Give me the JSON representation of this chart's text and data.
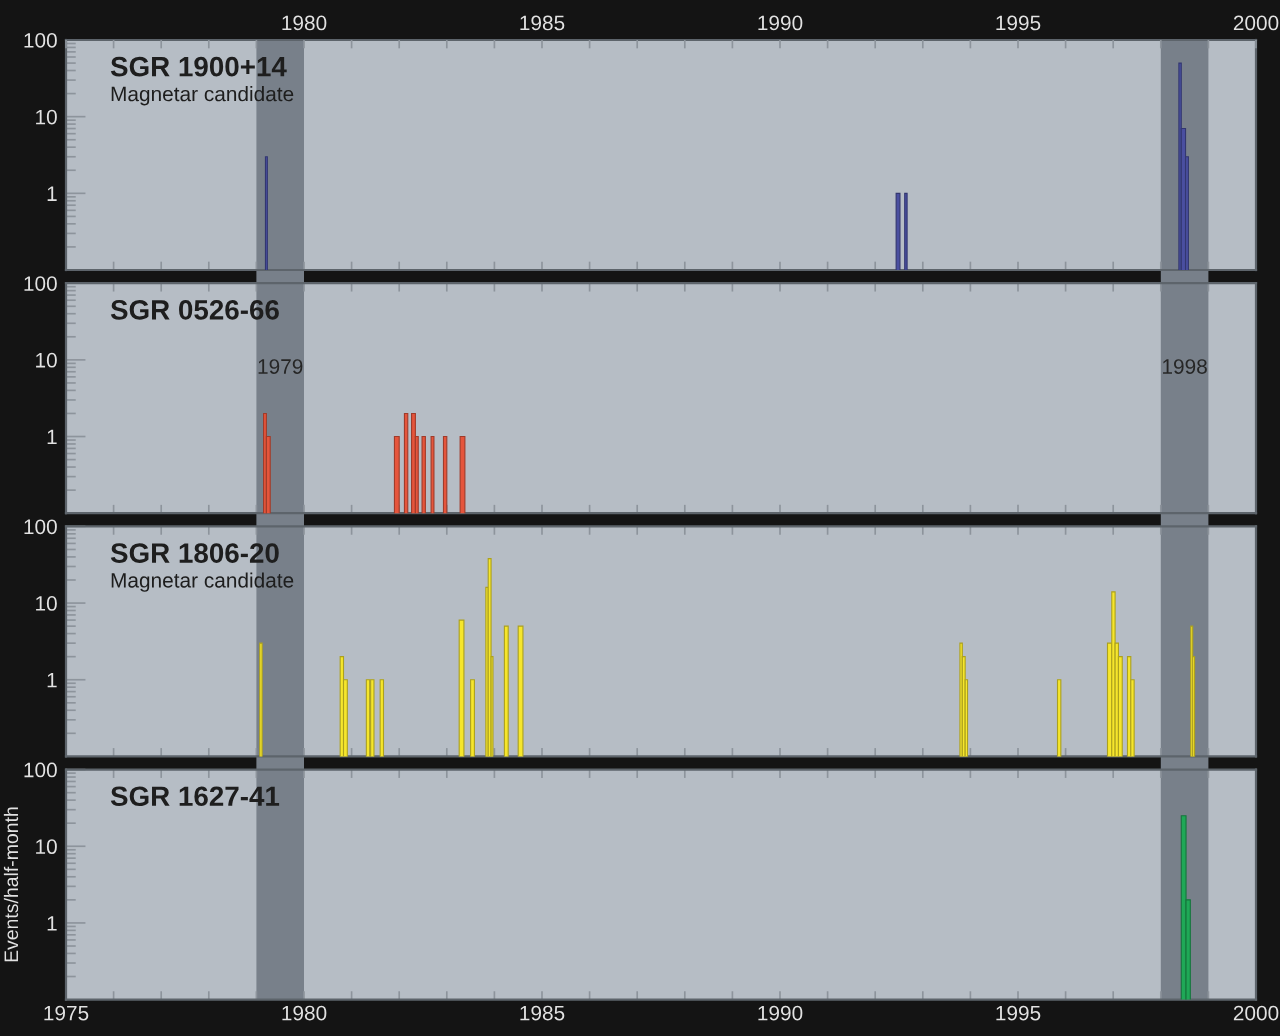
{
  "chart_data": [
    {
      "type": "histogram",
      "title": "SGR 1900+14",
      "subtitle": "Magnetar candidate",
      "color": "#4a4fa0",
      "log": true,
      "tick_labels": "y",
      "bins": [
        1979.19,
        1979.23,
        1992.44,
        1992.52,
        1992.62,
        1992.67,
        1998.38,
        1998.43,
        1998.52,
        1998.58
      ],
      "values": [
        3,
        null,
        1,
        null,
        1,
        null,
        50,
        7,
        3
      ],
      "xlim": [
        1975,
        2000
      ],
      "ylim": [
        0.1,
        100
      ],
      "yticks": [
        1,
        10,
        100
      ],
      "xticks": [
        1975,
        {
          "value": 1976,
          "label": null
        },
        {
          "value": 1977,
          "label": null
        },
        {
          "value": 1978,
          "label": null
        },
        {
          "value": 1979,
          "label": null
        },
        1980,
        {
          "value": 1981,
          "label": null
        },
        {
          "value": 1982,
          "label": null
        },
        {
          "value": 1983,
          "label": null
        },
        {
          "value": 1984,
          "label": null
        },
        1985,
        {
          "value": 1986,
          "label": null
        },
        {
          "value": 1987,
          "label": null
        },
        {
          "value": 1988,
          "label": null
        },
        {
          "value": 1989,
          "label": null
        },
        1990,
        {
          "value": 1991,
          "label": null
        },
        {
          "value": 1992,
          "label": null
        },
        {
          "value": 1993,
          "label": null
        },
        {
          "value": 1994,
          "label": null
        },
        1995,
        {
          "value": 1996,
          "label": null
        },
        {
          "value": 1997,
          "label": null
        },
        {
          "value": 1998,
          "label": null
        },
        {
          "value": 1999,
          "label": null
        },
        2000
      ],
      "x2lim": [
        1975,
        2000
      ],
      "x2ticks": [
        {
          "value": 1975,
          "label": null
        },
        {
          "value": 1976,
          "label": null
        },
        {
          "value": 1977,
          "label": null
        },
        {
          "value": 1978,
          "label": null
        },
        {
          "value": 1979,
          "label": null
        },
        1980,
        {
          "value": 1981,
          "label": null
        },
        {
          "value": 1982,
          "label": null
        },
        {
          "value": 1983,
          "label": null
        },
        {
          "value": 1984,
          "label": null
        },
        1985,
        {
          "value": 1986,
          "label": null
        },
        {
          "value": 1987,
          "label": null
        },
        {
          "value": 1988,
          "label": null
        },
        {
          "value": 1989,
          "label": null
        },
        1990,
        {
          "value": 1991,
          "label": null
        },
        {
          "value": 1992,
          "label": null
        },
        {
          "value": 1993,
          "label": null
        },
        {
          "value": 1994,
          "label": null
        },
        1995,
        {
          "value": 1996,
          "label": null
        },
        {
          "value": 1997,
          "label": null
        },
        {
          "value": 1998,
          "label": null
        },
        {
          "value": 1999,
          "label": null
        },
        2000
      ],
      "bands": [
        {
          "axis": "x",
          "from": 1979,
          "to": 1980,
          "label": null,
          "color": "#78808a"
        },
        {
          "axis": "x",
          "from": 1998,
          "to": 1999,
          "label": null,
          "color": "#78808a"
        }
      ]
    },
    {
      "type": "histogram",
      "title": "SGR 0526-66",
      "color": "#e5553c",
      "log": true,
      "tick_labels": "y",
      "bins": [
        1979.15,
        1979.21,
        1979.29,
        1981.9,
        1982.0,
        1982.11,
        1982.18,
        1982.26,
        1982.34,
        1982.4,
        1982.48,
        1982.55,
        1982.67,
        1982.73,
        1982.93,
        1983.0,
        1983.28,
        1983.38
      ],
      "values": [
        2,
        1,
        null,
        1,
        null,
        2,
        null,
        2,
        1,
        null,
        1,
        null,
        1,
        null,
        1,
        null,
        1
      ],
      "xlim": [
        1975,
        2000
      ],
      "ylim": [
        0.1,
        100
      ],
      "yticks": [
        1,
        10,
        100
      ],
      "xticks": [
        1975,
        {
          "value": 1976,
          "label": null
        },
        {
          "value": 1977,
          "label": null
        },
        {
          "value": 1978,
          "label": null
        },
        {
          "value": 1979,
          "label": null
        },
        1980,
        {
          "value": 1981,
          "label": null
        },
        {
          "value": 1982,
          "label": null
        },
        {
          "value": 1983,
          "label": null
        },
        {
          "value": 1984,
          "label": null
        },
        1985,
        {
          "value": 1986,
          "label": null
        },
        {
          "value": 1987,
          "label": null
        },
        {
          "value": 1988,
          "label": null
        },
        {
          "value": 1989,
          "label": null
        },
        1990,
        {
          "value": 1991,
          "label": null
        },
        {
          "value": 1992,
          "label": null
        },
        {
          "value": 1993,
          "label": null
        },
        {
          "value": 1994,
          "label": null
        },
        1995,
        {
          "value": 1996,
          "label": null
        },
        {
          "value": 1997,
          "label": null
        },
        {
          "value": 1998,
          "label": null
        },
        {
          "value": 1999,
          "label": null
        },
        2000
      ],
      "bands": [
        {
          "axis": "x",
          "from": 1979,
          "to": 1980,
          "label": "1979",
          "color": "#78808a"
        },
        {
          "axis": "x",
          "from": 1998,
          "to": 1999,
          "label": "1998",
          "color": "#78808a"
        }
      ]
    },
    {
      "type": "histogram",
      "title": "SGR 1806-20",
      "subtitle": "Magnetar candidate",
      "color": "#f6e62c",
      "log": true,
      "tick_labels": "y",
      "bins": [
        1979.07,
        1979.12,
        1980.76,
        1980.83,
        1980.91,
        1981.31,
        1981.38,
        1981.4,
        1981.47,
        1981.6,
        1981.67,
        1983.26,
        1983.36,
        1983.5,
        1983.58,
        1983.82,
        1983.87,
        1983.93,
        1983.97,
        1984.21,
        1984.29,
        1984.5,
        1984.6,
        1993.78,
        1993.83,
        1993.89,
        1993.94,
        1995.83,
        1995.9,
        1996.88,
        1996.97,
        1997.04,
        1997.11,
        1997.19,
        1997.3,
        1997.37,
        1997.44,
        1998.63,
        1998.67,
        1998.71
      ],
      "values": [
        3,
        null,
        2,
        1,
        null,
        1,
        null,
        1,
        null,
        1,
        null,
        6,
        null,
        1,
        null,
        16,
        38,
        2,
        null,
        5,
        null,
        5,
        null,
        3,
        2,
        1,
        null,
        1,
        null,
        3,
        14,
        3,
        2,
        null,
        2,
        1,
        null,
        5,
        2
      ],
      "xlim": [
        1975,
        2000
      ],
      "ylim": [
        0.1,
        100
      ],
      "yticks": [
        1,
        10,
        100
      ],
      "xticks": [
        1975,
        {
          "value": 1976,
          "label": null
        },
        {
          "value": 1977,
          "label": null
        },
        {
          "value": 1978,
          "label": null
        },
        {
          "value": 1979,
          "label": null
        },
        1980,
        {
          "value": 1981,
          "label": null
        },
        {
          "value": 1982,
          "label": null
        },
        {
          "value": 1983,
          "label": null
        },
        {
          "value": 1984,
          "label": null
        },
        1985,
        {
          "value": 1986,
          "label": null
        },
        {
          "value": 1987,
          "label": null
        },
        {
          "value": 1988,
          "label": null
        },
        {
          "value": 1989,
          "label": null
        },
        1990,
        {
          "value": 1991,
          "label": null
        },
        {
          "value": 1992,
          "label": null
        },
        {
          "value": 1993,
          "label": null
        },
        {
          "value": 1994,
          "label": null
        },
        1995,
        {
          "value": 1996,
          "label": null
        },
        {
          "value": 1997,
          "label": null
        },
        {
          "value": 1998,
          "label": null
        },
        {
          "value": 1999,
          "label": null
        },
        2000
      ],
      "bands": [
        {
          "axis": "x",
          "from": 1979,
          "to": 1980,
          "label": null,
          "color": "#78808a"
        },
        {
          "axis": "x",
          "from": 1998,
          "to": 1999,
          "label": null,
          "color": "#78808a"
        }
      ]
    },
    {
      "type": "histogram",
      "title": "SGR 1627-41",
      "ylabel": "Events/half-month",
      "color": "#1fa857",
      "log": true,
      "bins": [
        1998.43,
        1998.53,
        1998.62
      ],
      "values": [
        25,
        2
      ],
      "xlim": [
        1975,
        2000
      ],
      "ylim": [
        0.1,
        100
      ],
      "yticks": [
        1,
        10,
        100
      ],
      "xticks": [
        1975,
        {
          "value": 1976,
          "label": null
        },
        {
          "value": 1977,
          "label": null
        },
        {
          "value": 1978,
          "label": null
        },
        {
          "value": 1979,
          "label": null
        },
        1980,
        {
          "value": 1981,
          "label": null
        },
        {
          "value": 1982,
          "label": null
        },
        {
          "value": 1983,
          "label": null
        },
        {
          "value": 1984,
          "label": null
        },
        1985,
        {
          "value": 1986,
          "label": null
        },
        {
          "value": 1987,
          "label": null
        },
        {
          "value": 1988,
          "label": null
        },
        {
          "value": 1989,
          "label": null
        },
        1990,
        {
          "value": 1991,
          "label": null
        },
        {
          "value": 1992,
          "label": null
        },
        {
          "value": 1993,
          "label": null
        },
        {
          "value": 1994,
          "label": null
        },
        1995,
        {
          "value": 1996,
          "label": null
        },
        {
          "value": 1997,
          "label": null
        },
        {
          "value": 1998,
          "label": null
        },
        {
          "value": 1999,
          "label": null
        },
        2000
      ],
      "bands": [
        {
          "axis": "x",
          "from": 1979,
          "to": 1980,
          "label": null,
          "color": "#78808a"
        },
        {
          "axis": "x",
          "from": 1998,
          "to": 1999,
          "label": null,
          "color": "#78808a"
        }
      ]
    }
  ]
}
